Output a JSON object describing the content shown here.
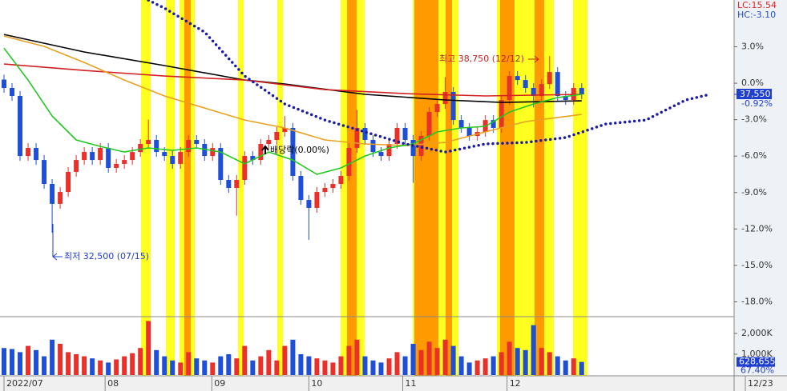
{
  "chart_data": [
    {
      "type": "candlestick",
      "header": {
        "lc": "LC:15.54",
        "hc": "HC:-3.10"
      },
      "xlim": [
        -0.5,
        91
      ],
      "xticks": [
        {
          "value": 0,
          "label": "2022/07"
        },
        {
          "value": 12.6,
          "label": "08"
        },
        {
          "value": 25.9,
          "label": "09"
        },
        {
          "value": 38,
          "label": "10"
        },
        {
          "value": 49.7,
          "label": "11"
        },
        {
          "value": 62.7,
          "label": "12"
        },
        {
          "value": 92.4,
          "label": "12/23"
        }
      ],
      "ylim": [
        -19.15,
        6.85
      ],
      "yticks": [
        {
          "value": 3,
          "label": "3.0%"
        },
        {
          "value": 0,
          "label": "0.0%"
        },
        {
          "value": -3,
          "label": "-3.0%"
        },
        {
          "value": -6,
          "label": "-6.0%"
        },
        {
          "value": -9,
          "label": "-9.0%"
        },
        {
          "value": -12,
          "label": "-12.0%"
        },
        {
          "value": -15,
          "label": "-15.0%"
        },
        {
          "value": -18,
          "label": "-18.0%"
        }
      ],
      "up_color": "#e8312a",
      "down_color": "#1f4fd6",
      "open": [
        0.3,
        -0.39,
        -1.05,
        -5.99,
        -5.33,
        -6.32,
        -8.29,
        -9.93,
        -8.95,
        -7.3,
        -6.32,
        -5.66,
        -6.32,
        -5.33,
        -6.97,
        -6.64,
        -6.32,
        -5.66,
        -5.0,
        -4.67,
        -5.66,
        -5.99,
        -6.64,
        -5.66,
        -4.67,
        -5.0,
        -5.99,
        -5.33,
        -7.96,
        -8.62,
        -7.96,
        -5.99,
        -6.32,
        -5.0,
        -4.67,
        -4.01,
        -3.68,
        -7.63,
        -9.61,
        -10.26,
        -8.95,
        -8.62,
        -8.29,
        -7.63,
        -5.33,
        -3.68,
        -4.67,
        -5.66,
        -5.99,
        -5.0,
        -3.68,
        -4.67,
        -5.99,
        -4.34,
        -2.37,
        -1.71,
        -0.72,
        -3.03,
        -3.68,
        -4.34,
        -4.01,
        -3.03,
        -3.68,
        -1.38,
        0.59,
        0.26,
        -0.39,
        -1.05,
        -0.07,
        0.92,
        -1.05,
        -1.38,
        -0.39
      ],
      "high": [
        0.7,
        0.01,
        -0.65,
        -4.93,
        -4.93,
        -5.92,
        -7.89,
        -8.55,
        -6.9,
        -5.92,
        -5.26,
        -5.26,
        -4.93,
        -4.93,
        -6.24,
        -5.92,
        -5.26,
        -4.6,
        -3.0,
        -4.27,
        -5.26,
        -5.59,
        -5.26,
        -4.27,
        -4.27,
        -4.6,
        -4.93,
        -4.93,
        -7.56,
        -7.56,
        -5.59,
        -5.59,
        -4.6,
        -4.27,
        -3.61,
        -2.7,
        -3.28,
        -7.23,
        -9.21,
        -8.55,
        -8.22,
        -7.89,
        -7.23,
        -4.93,
        -2.2,
        -3.28,
        -4.27,
        -5.26,
        -4.6,
        -3.28,
        -3.28,
        -4.27,
        -3.94,
        -1.97,
        -1.31,
        0.5,
        -0.32,
        -2.63,
        -3.28,
        -3.61,
        -2.63,
        -2.63,
        -0.98,
        0.99,
        0.99,
        0.66,
        0.01,
        0.33,
        2.24,
        1.32,
        -0.65,
        0.01,
        0.01
      ],
      "low": [
        -0.79,
        -1.45,
        -6.39,
        -6.39,
        -6.72,
        -8.69,
        -12.3,
        -10.33,
        -9.35,
        -7.7,
        -6.72,
        -6.72,
        -6.72,
        -7.37,
        -7.37,
        -7.04,
        -6.72,
        -6.06,
        -5.4,
        -6.06,
        -6.39,
        -7.04,
        -7.04,
        -6.06,
        -5.4,
        -6.39,
        -6.39,
        -8.36,
        -9.02,
        -10.9,
        -8.36,
        -6.72,
        -6.72,
        -5.4,
        -5.07,
        -4.41,
        -8.03,
        -10.01,
        -12.9,
        -10.66,
        -9.35,
        -9.02,
        -8.69,
        -8.03,
        -5.73,
        -5.07,
        -6.06,
        -6.39,
        -6.39,
        -5.4,
        -5.07,
        -8.2,
        -6.39,
        -4.74,
        -2.77,
        -2.11,
        -3.43,
        -4.08,
        -4.74,
        -4.74,
        -4.41,
        -4.08,
        -4.08,
        -1.78,
        -0.14,
        -0.79,
        -2.0,
        -1.45,
        -0.47,
        -1.45,
        -1.78,
        -1.78,
        -1.32
      ],
      "close": [
        -0.39,
        -1.05,
        -5.99,
        -5.33,
        -6.32,
        -8.29,
        -9.93,
        -8.95,
        -7.3,
        -6.32,
        -5.66,
        -6.32,
        -5.33,
        -6.97,
        -6.64,
        -6.32,
        -5.66,
        -5.0,
        -4.67,
        -5.66,
        -5.99,
        -6.64,
        -5.66,
        -4.67,
        -5.0,
        -5.99,
        -5.33,
        -7.96,
        -8.62,
        -7.96,
        -5.99,
        -6.32,
        -5.0,
        -4.67,
        -4.01,
        -3.68,
        -7.63,
        -9.61,
        -10.26,
        -8.95,
        -8.62,
        -8.29,
        -7.63,
        -5.33,
        -3.68,
        -4.67,
        -5.66,
        -5.99,
        -5.0,
        -3.68,
        -4.67,
        -5.99,
        -4.34,
        -2.37,
        -1.71,
        -0.72,
        -3.03,
        -3.68,
        -4.34,
        -4.01,
        -3.03,
        -3.68,
        -1.38,
        0.59,
        0.26,
        -0.39,
        -1.05,
        -0.07,
        0.92,
        -1.05,
        -1.38,
        -0.39,
        -0.92
      ],
      "lines": [
        {
          "color": "#000000",
          "x": [
            0,
            10,
            20,
            30,
            35,
            45,
            55,
            62,
            72
          ],
          "values": [
            4.01,
            2.57,
            1.45,
            0.26,
            -0.07,
            -0.92,
            -1.38,
            -1.58,
            -1.45
          ]
        },
        {
          "color": "#d42020",
          "x": [
            0,
            10,
            20,
            30,
            40,
            50,
            60,
            72
          ],
          "values": [
            1.58,
            1.05,
            0.59,
            0.26,
            -0.53,
            -0.86,
            -1.05,
            -0.92
          ]
        },
        {
          "color": "#e8a020",
          "x": [
            0,
            5,
            10,
            15,
            20,
            25,
            30,
            35,
            40,
            45,
            50,
            55,
            60,
            65,
            72
          ],
          "values": [
            3.88,
            3.03,
            1.71,
            0.26,
            -1.05,
            -2.04,
            -3.03,
            -3.68,
            -4.67,
            -5.0,
            -5.13,
            -4.87,
            -4.01,
            -3.16,
            -2.57
          ]
        },
        {
          "color": "#22c822",
          "x": [
            0,
            3,
            6,
            9,
            12,
            15,
            18,
            21,
            24,
            27,
            30,
            33,
            36,
            39,
            42,
            45,
            48,
            51,
            54,
            57,
            60,
            63,
            66,
            69,
            72
          ],
          "values": [
            2.89,
            0.26,
            -2.7,
            -4.67,
            -5.2,
            -5.66,
            -5.33,
            -5.53,
            -5.33,
            -5.66,
            -6.64,
            -5.66,
            -6.32,
            -7.5,
            -6.97,
            -5.99,
            -5.33,
            -5.0,
            -4.01,
            -3.68,
            -3.55,
            -2.37,
            -1.71,
            -1.18,
            -0.92
          ]
        },
        {
          "color": "#1a1aa8",
          "dotted": true,
          "x": [
            18,
            20,
            25,
            30,
            35,
            40,
            45,
            50,
            55,
            60,
            65,
            70,
            75,
            80,
            85,
            88
          ],
          "values": [
            6.84,
            6.18,
            4.21,
            0.59,
            -1.71,
            -3.03,
            -4.01,
            -5.0,
            -5.66,
            -5.0,
            -4.87,
            -4.47,
            -3.36,
            -3.03,
            -1.38,
            -0.92
          ]
        }
      ],
      "last": {
        "price_label": "37,550",
        "change": {
          "value": -0.92,
          "label": "-0.92%"
        }
      },
      "annotations": {
        "high": "최고 38,750 (12/12)",
        "low": "최저 32,500 (07/15)",
        "ex_dividend": "배당락(0.00%)"
      }
    },
    {
      "type": "bar",
      "ylim": [
        0,
        2770
      ],
      "yticks": [
        {
          "value": 2000,
          "label": "2,000K"
        },
        {
          "value": 1000,
          "label": "1,000K"
        }
      ],
      "values": [
        1300,
        1250,
        1100,
        1400,
        1200,
        900,
        1700,
        1500,
        1100,
        1000,
        900,
        800,
        700,
        600,
        750,
        900,
        1050,
        1300,
        2600,
        1200,
        900,
        700,
        600,
        1100,
        800,
        700,
        600,
        900,
        1000,
        800,
        1400,
        700,
        900,
        1200,
        700,
        1400,
        1700,
        1000,
        900,
        800,
        700,
        600,
        900,
        1400,
        1700,
        900,
        700,
        600,
        800,
        1100,
        900,
        1500,
        1200,
        1600,
        1300,
        1700,
        1400,
        900,
        600,
        700,
        800,
        900,
        1100,
        1600,
        1300,
        1200,
        2400,
        1300,
        1100,
        900,
        700,
        800,
        628.655
      ],
      "last": {
        "value": 628.655,
        "label": "628,655"
      },
      "ratio_label": "67.40%"
    }
  ]
}
